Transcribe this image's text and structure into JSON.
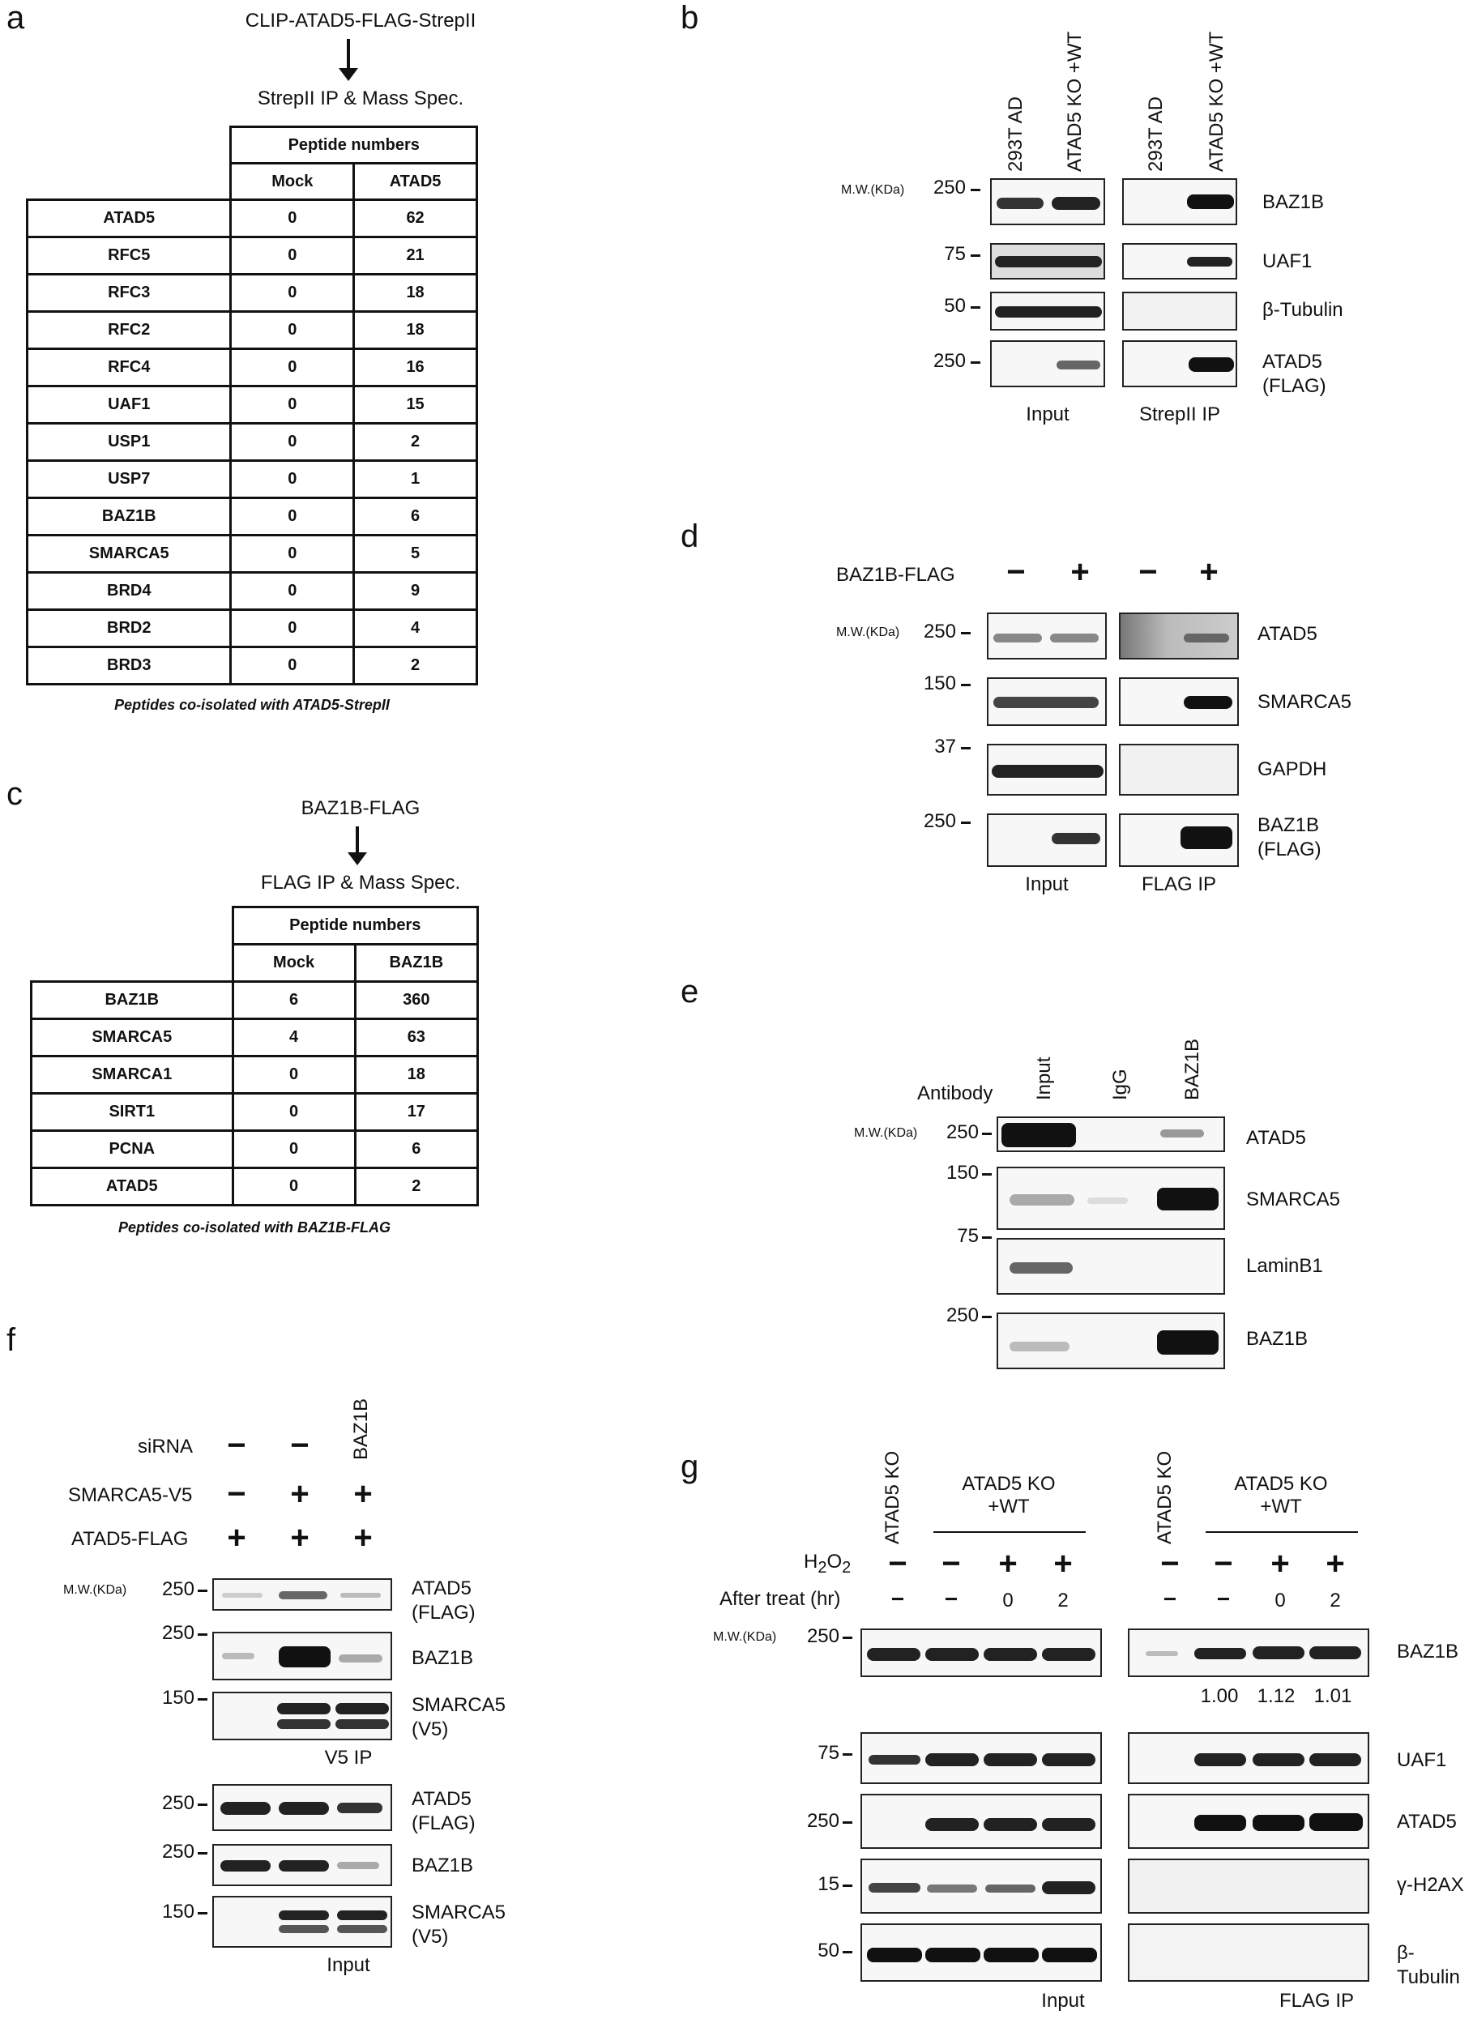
{
  "panel_a": {
    "letter": "a",
    "construct": "CLIP-ATAD5-FLAG-StrepII",
    "method": "StrepII IP & Mass Spec.",
    "header_group": "Peptide numbers",
    "columns": [
      "Mock",
      "ATAD5"
    ],
    "rows": [
      [
        "ATAD5",
        "0",
        "62"
      ],
      [
        "RFC5",
        "0",
        "21"
      ],
      [
        "RFC3",
        "0",
        "18"
      ],
      [
        "RFC2",
        "0",
        "18"
      ],
      [
        "RFC4",
        "0",
        "16"
      ],
      [
        "UAF1",
        "0",
        "15"
      ],
      [
        "USP1",
        "0",
        "2"
      ],
      [
        "USP7",
        "0",
        "1"
      ],
      [
        "BAZ1B",
        "0",
        "6"
      ],
      [
        "SMARCA5",
        "0",
        "5"
      ],
      [
        "BRD4",
        "0",
        "9"
      ],
      [
        "BRD2",
        "0",
        "4"
      ],
      [
        "BRD3",
        "0",
        "2"
      ]
    ],
    "caption": "Peptides co-isolated with ATAD5-StrepII"
  },
  "panel_b": {
    "letter": "b",
    "lanes": [
      "293T AD",
      "ATAD5 KO +WT",
      "293T AD",
      "ATAD5 KO +WT"
    ],
    "mw_title": "M.W.(KDa)",
    "rows": [
      {
        "mw": "250",
        "label": "BAZ1B"
      },
      {
        "mw": "75",
        "label": "UAF1"
      },
      {
        "mw": "50",
        "label": "β-Tubulin"
      },
      {
        "mw": "250",
        "label": "ATAD5",
        "label2": "(FLAG)"
      }
    ],
    "group_labels": [
      "Input",
      "StrepII IP"
    ]
  },
  "panel_c": {
    "letter": "c",
    "construct": "BAZ1B-FLAG",
    "method": "FLAG IP & Mass Spec.",
    "header_group": "Peptide numbers",
    "columns": [
      "Mock",
      "BAZ1B"
    ],
    "rows": [
      [
        "BAZ1B",
        "6",
        "360"
      ],
      [
        "SMARCA5",
        "4",
        "63"
      ],
      [
        "SMARCA1",
        "0",
        "18"
      ],
      [
        "SIRT1",
        "0",
        "17"
      ],
      [
        "PCNA",
        "0",
        "6"
      ],
      [
        "ATAD5",
        "0",
        "2"
      ]
    ],
    "caption": "Peptides co-isolated with BAZ1B-FLAG"
  },
  "panel_d": {
    "letter": "d",
    "treatment": "BAZ1B-FLAG",
    "signs": [
      "−",
      "+",
      "−",
      "+"
    ],
    "mw_title": "M.W.(KDa)",
    "rows": [
      {
        "mw": "250",
        "label": "ATAD5"
      },
      {
        "mw": "150",
        "label": "SMARCA5"
      },
      {
        "mw": "37",
        "label": "GAPDH"
      },
      {
        "mw": "250",
        "label": "BAZ1B",
        "label2": "(FLAG)"
      }
    ],
    "group_labels": [
      "Input",
      "FLAG IP"
    ]
  },
  "panel_e": {
    "letter": "e",
    "antibody_label": "Antibody",
    "lanes": [
      "Input",
      "IgG",
      "BAZ1B"
    ],
    "mw_title": "M.W.(KDa)",
    "rows": [
      {
        "mw": "250",
        "label": "ATAD5"
      },
      {
        "mw": "150",
        "label": "SMARCA5"
      },
      {
        "mw": "75",
        "label": "LaminB1"
      },
      {
        "mw": "250",
        "label": "BAZ1B"
      }
    ]
  },
  "panel_f": {
    "letter": "f",
    "siRNA_label": "siRNA",
    "siRNA_signs": [
      "−",
      "−"
    ],
    "siRNA_target": "BAZ1B",
    "smarca5_label": "SMARCA5-V5",
    "smarca5_signs": [
      "−",
      "+",
      "+"
    ],
    "atad5_label": "ATAD5-FLAG",
    "atad5_signs": [
      "+",
      "+",
      "+"
    ],
    "mw_title": "M.W.(KDa)",
    "ip_rows": [
      {
        "mw": "250",
        "label": "ATAD5",
        "label2": "(FLAG)"
      },
      {
        "mw": "250",
        "label": "BAZ1B"
      },
      {
        "mw": "150",
        "label": "SMARCA5",
        "label2": "(V5)"
      }
    ],
    "ip_label": "V5 IP",
    "input_rows": [
      {
        "mw": "250",
        "label": "ATAD5",
        "label2": "(FLAG)"
      },
      {
        "mw": "250",
        "label": "BAZ1B"
      },
      {
        "mw": "150",
        "label": "SMARCA5",
        "label2": "(V5)"
      }
    ],
    "input_label": "Input"
  },
  "panel_g": {
    "letter": "g",
    "ko_label": "ATAD5 KO",
    "wt_label_1": "ATAD5 KO",
    "wt_label_2": "+WT",
    "h2o2_label": "H2O2",
    "h2o2_signs": [
      "−",
      "−",
      "+",
      "+"
    ],
    "time_label": "After treat (hr)",
    "time_values": [
      "−",
      "−",
      "0",
      "2"
    ],
    "mw_title": "M.W.(KDa)",
    "rows": [
      {
        "mw": "250",
        "label": "BAZ1B"
      },
      {
        "mw": "75",
        "label": "UAF1"
      },
      {
        "mw": "250",
        "label": "ATAD5"
      },
      {
        "mw": "15",
        "label": "γ-H2AX"
      },
      {
        "mw": "50",
        "label": "β-Tubulin"
      }
    ],
    "quant": [
      "1.00",
      "1.12",
      "1.01"
    ],
    "group_labels": [
      "Input",
      "FLAG IP"
    ]
  }
}
